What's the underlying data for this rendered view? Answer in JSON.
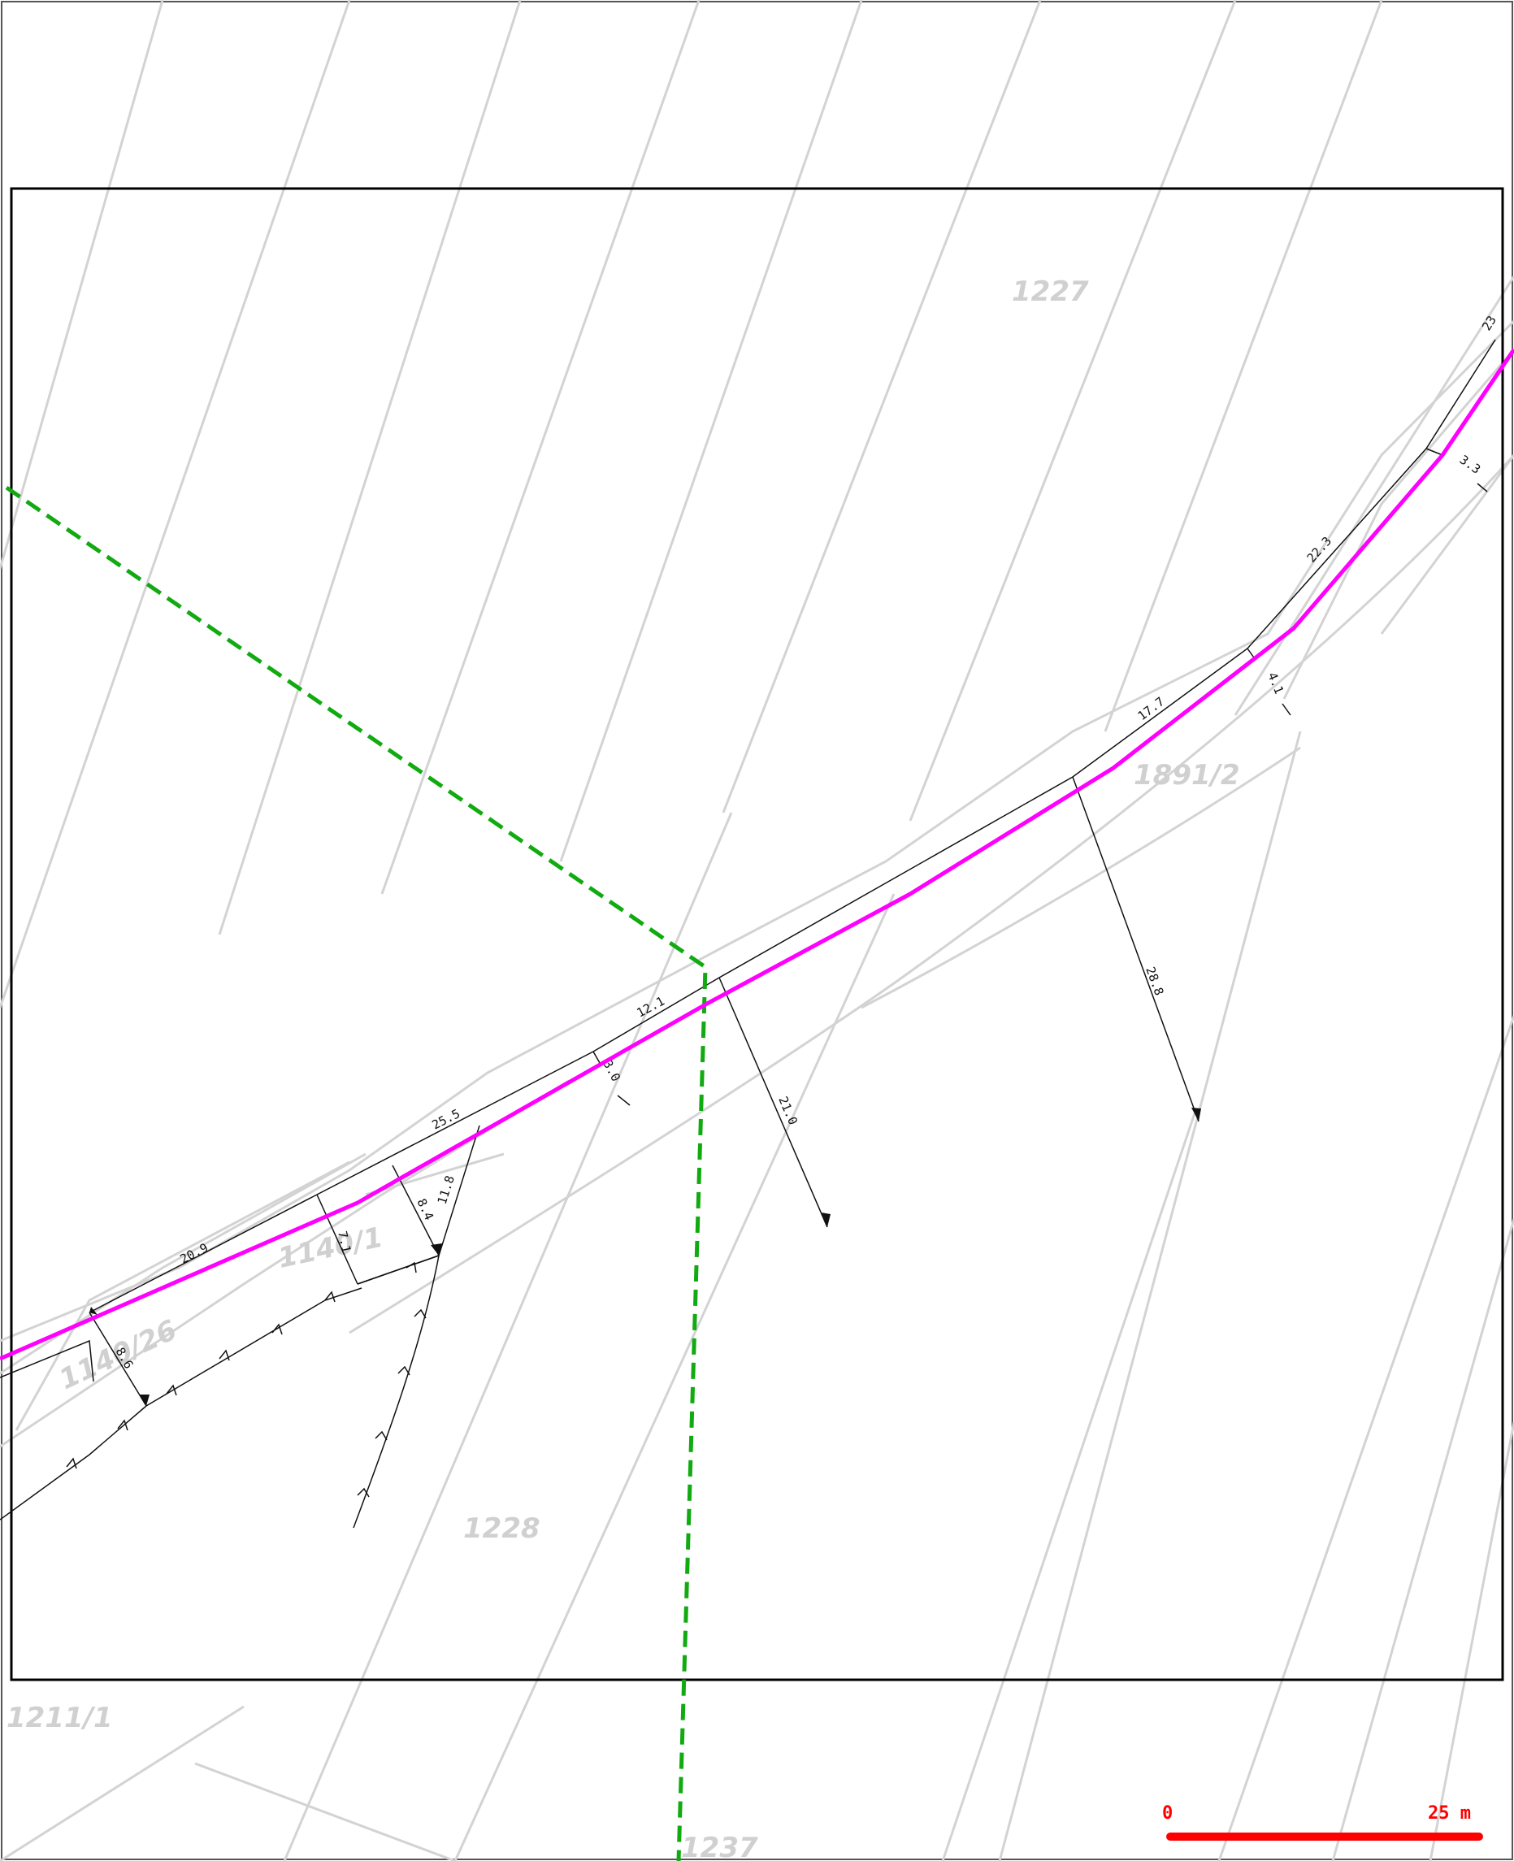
{
  "colors": {
    "background": "#ffffff",
    "frame": "#000000",
    "parcel_lines": "#d3d3d3",
    "parcel_text": "#d0d0d0",
    "pipeline_route": "#ff00ff",
    "boundary_dashed": "#11aa11",
    "dimension_lines": "#111111",
    "scale_bar": "#ff0000"
  },
  "parcels": {
    "p1227": "1227",
    "p1891_2": "1891/2",
    "p1140_1": "1140/1",
    "p1140_26": "1140/26",
    "p1228": "1228",
    "p1211_1": "1211/1",
    "p1237": "1237"
  },
  "dimensions": {
    "d23": "23",
    "d3_3": "3.3",
    "d22_3": "22.3",
    "d4_1": "4.1",
    "d17_7": "17.7",
    "d28_8": "28.8",
    "d12_1": "12.1",
    "d3_0": "3.0",
    "d21_0": "21.0",
    "d25_5": "25.5",
    "d11_8": "11.8",
    "d8_4": "8.4",
    "d7_1": "7.1",
    "d20_9": "20.9",
    "d8_6": "8.6"
  },
  "scale_bar": {
    "start_label": "0",
    "end_label": "25 m"
  }
}
